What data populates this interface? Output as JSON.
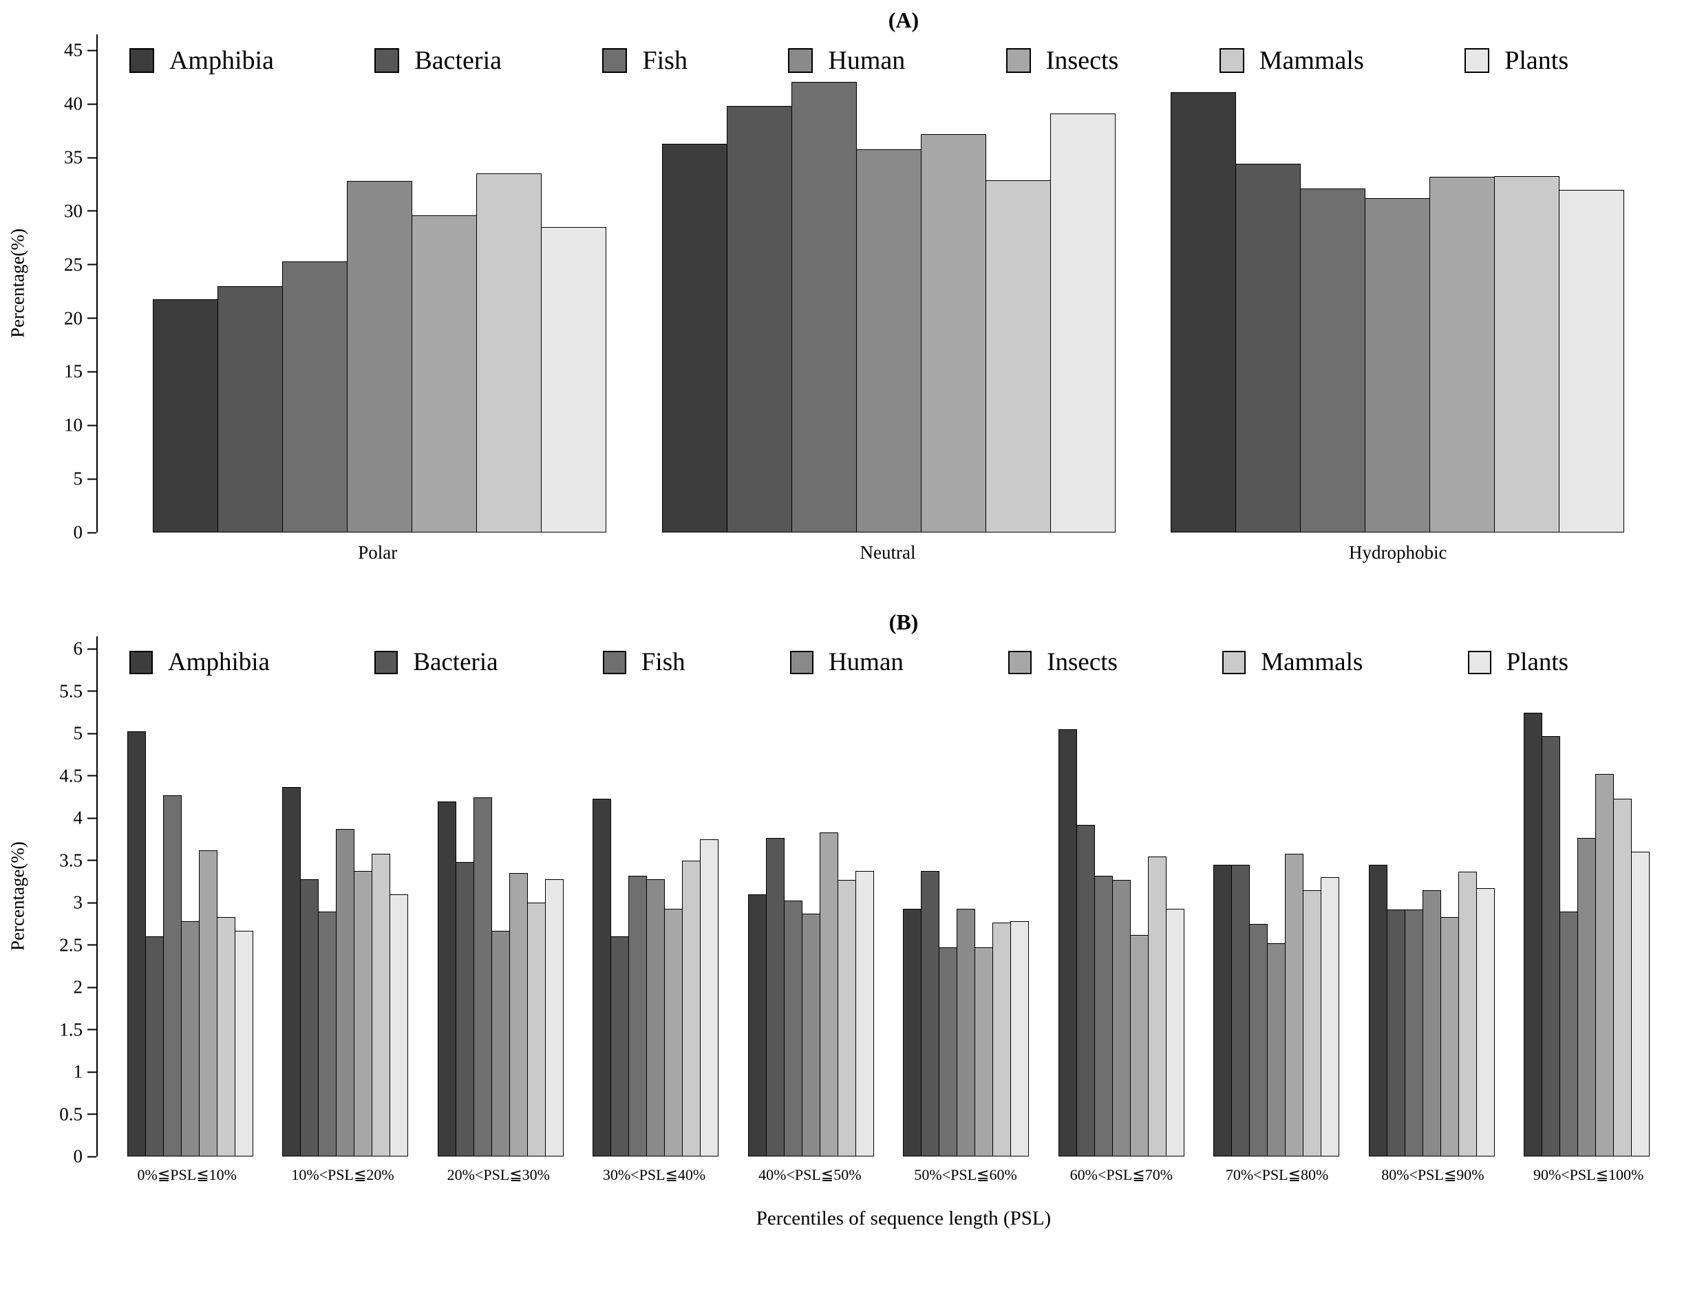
{
  "page": {
    "background": "#ffffff"
  },
  "chart_data": [
    {
      "type": "bar",
      "title": "(A)",
      "xlabel": "",
      "ylabel": "Percentage(%)",
      "ylim": [
        0,
        45
      ],
      "ytick_step": 5,
      "grid": false,
      "legend_position": "top",
      "categories": [
        "Polar",
        "Neutral",
        "Hydrophobic"
      ],
      "series": [
        {
          "name": "Amphibia",
          "color": "#3d3d3d",
          "values": [
            21.8,
            36.3,
            41.1
          ]
        },
        {
          "name": "Bacteria",
          "color": "#575757",
          "values": [
            23.0,
            39.8,
            34.4
          ]
        },
        {
          "name": "Fish",
          "color": "#6f6f6f",
          "values": [
            25.3,
            42.1,
            32.1
          ]
        },
        {
          "name": "Human",
          "color": "#8a8a8a",
          "values": [
            32.8,
            35.8,
            31.2
          ]
        },
        {
          "name": "Insects",
          "color": "#a7a7a7",
          "values": [
            29.6,
            37.2,
            33.2
          ]
        },
        {
          "name": "Mammals",
          "color": "#cacaca",
          "values": [
            33.5,
            32.9,
            33.3
          ]
        },
        {
          "name": "Plants",
          "color": "#e7e7e7",
          "values": [
            28.5,
            39.1,
            32.0
          ]
        }
      ]
    },
    {
      "type": "bar",
      "title": "(B)",
      "xlabel": "Percentiles of sequence length (PSL)",
      "ylabel": "Percentage(%)",
      "ylim": [
        0,
        6
      ],
      "ytick_step": 0.5,
      "grid": false,
      "legend_position": "top",
      "categories": [
        "0%≦PSL≦10%",
        "10%<PSL≦20%",
        "20%<PSL≦30%",
        "30%<PSL≦40%",
        "40%<PSL≦50%",
        "50%<PSL≦60%",
        "60%<PSL≦70%",
        "70%<PSL≦80%",
        "80%<PSL≦90%",
        "90%<PSL≦100%"
      ],
      "series": [
        {
          "name": "Amphibia",
          "color": "#3d3d3d",
          "values": [
            5.03,
            4.37,
            4.2,
            4.23,
            3.1,
            2.93,
            5.05,
            3.45,
            3.45,
            5.25
          ]
        },
        {
          "name": "Bacteria",
          "color": "#575757",
          "values": [
            2.6,
            3.28,
            3.48,
            2.6,
            3.77,
            3.38,
            3.92,
            3.45,
            2.92,
            4.97
          ]
        },
        {
          "name": "Fish",
          "color": "#6f6f6f",
          "values": [
            4.27,
            2.9,
            4.25,
            3.32,
            3.03,
            2.47,
            3.32,
            2.75,
            2.92,
            2.9
          ]
        },
        {
          "name": "Human",
          "color": "#8a8a8a",
          "values": [
            2.78,
            3.87,
            2.67,
            3.28,
            2.87,
            2.93,
            3.27,
            2.52,
            3.15,
            3.77
          ]
        },
        {
          "name": "Insects",
          "color": "#a7a7a7",
          "values": [
            3.62,
            3.38,
            3.35,
            2.93,
            3.83,
            2.47,
            2.62,
            3.58,
            2.83,
            4.52
          ]
        },
        {
          "name": "Mammals",
          "color": "#cacaca",
          "values": [
            2.83,
            3.58,
            3.0,
            3.5,
            3.27,
            2.77,
            3.55,
            3.15,
            3.37,
            4.23
          ]
        },
        {
          "name": "Plants",
          "color": "#e7e7e7",
          "values": [
            2.67,
            3.1,
            3.28,
            3.75,
            3.38,
            2.78,
            2.93,
            3.3,
            3.17,
            3.6
          ]
        }
      ]
    }
  ]
}
